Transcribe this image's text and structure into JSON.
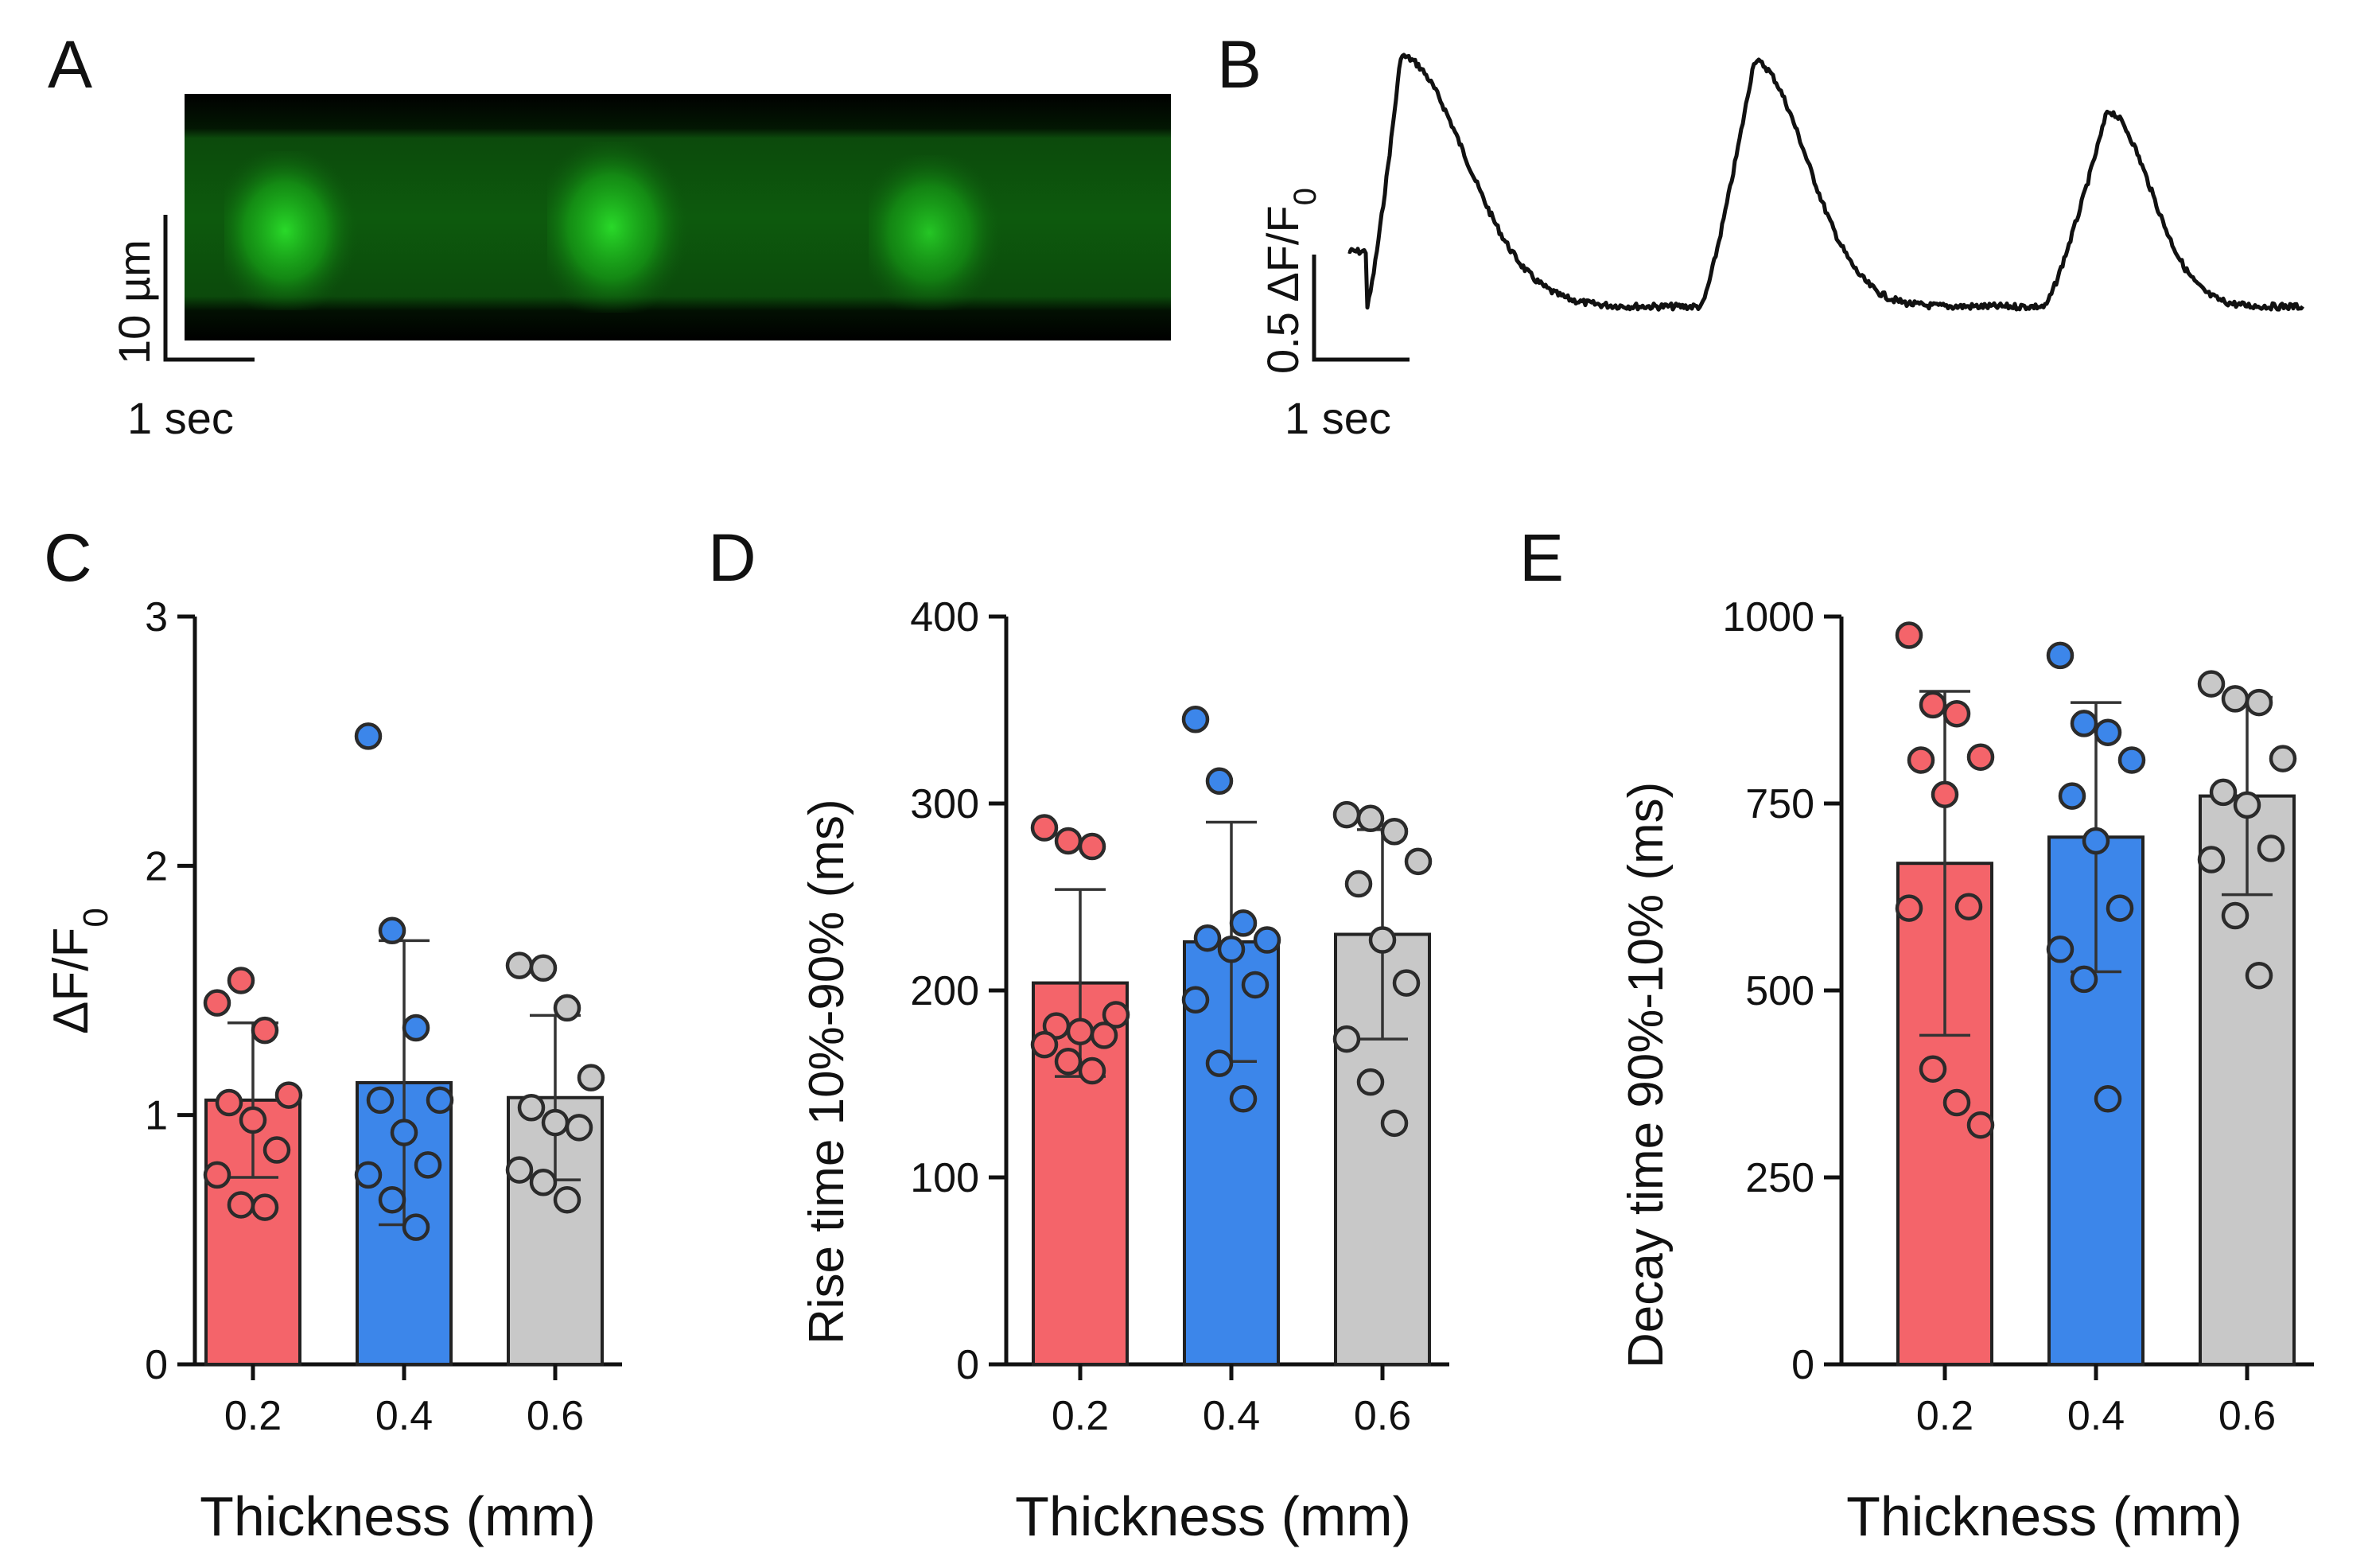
{
  "colors": {
    "red": "#f4646a",
    "blue": "#3c86ea",
    "gray": "#c8c8c8",
    "ink": "#111111",
    "kymo_bright": "#22dd22",
    "kymo_dim": "#0b5a0b"
  },
  "panel_a": {
    "label": "A",
    "scale_y": "10 µm",
    "scale_x": "1 sec"
  },
  "panel_b": {
    "label": "B",
    "scale_y_prefix": "0.5 ΔF/F",
    "scale_y_sub": "0",
    "scale_x": "1 sec"
  },
  "chart_data": [
    {
      "type": "bar",
      "panel": "C",
      "title": "",
      "categories": [
        "0.2",
        "0.4",
        "0.6"
      ],
      "values": [
        1.06,
        1.13,
        1.07
      ],
      "sd": [
        0.31,
        0.57,
        0.33
      ],
      "points": [
        [
          1.45,
          1.54,
          1.34,
          1.08,
          1.05,
          0.98,
          0.86,
          0.76,
          0.64,
          0.63
        ],
        [
          2.52,
          1.74,
          1.35,
          1.06,
          1.06,
          0.93,
          0.8,
          0.76,
          0.66,
          0.55
        ],
        [
          1.6,
          1.59,
          1.43,
          1.15,
          1.03,
          0.97,
          0.95,
          0.78,
          0.73,
          0.66
        ]
      ],
      "xlabel": "Thickness (mm)",
      "ylabel_prefix": "ΔF/F",
      "ylabel_sub": "0",
      "ylim": [
        0,
        3
      ],
      "yticks": [
        "0",
        "1",
        "2",
        "3"
      ]
    },
    {
      "type": "bar",
      "panel": "D",
      "title": "",
      "categories": [
        "0.2",
        "0.4",
        "0.6"
      ],
      "values": [
        204,
        226,
        230
      ],
      "sd": [
        50,
        64,
        56
      ],
      "points": [
        [
          287,
          280,
          277,
          187,
          181,
          178,
          176,
          171,
          162,
          157
        ],
        [
          345,
          312,
          236,
          227,
          228,
          222,
          203,
          195,
          161,
          142
        ],
        [
          294,
          292,
          285,
          269,
          257,
          227,
          204,
          174,
          151,
          129
        ]
      ],
      "xlabel": "Thickness (mm)",
      "ylabel": "Rise time 10%-90% (ms)",
      "ylim": [
        0,
        400
      ],
      "yticks": [
        "0",
        "100",
        "200",
        "300",
        "400"
      ]
    },
    {
      "type": "bar",
      "panel": "E",
      "title": "",
      "categories": [
        "0.2",
        "0.4",
        "0.6"
      ],
      "values": [
        670,
        705,
        760
      ],
      "sd": [
        230,
        180,
        132
      ],
      "points": [
        [
          975,
          882,
          870,
          812,
          808,
          762,
          612,
          610,
          395,
          350,
          320
        ],
        [
          948,
          857,
          845,
          808,
          760,
          700,
          610,
          555,
          515,
          355
        ],
        [
          910,
          890,
          885,
          810,
          765,
          748,
          690,
          675,
          600,
          520
        ]
      ],
      "xlabel": "Thickness (mm)",
      "ylabel": "Decay time 90%-10% (ms)",
      "ylim": [
        0,
        1000
      ],
      "yticks": [
        "0",
        "250",
        "500",
        "750",
        "1000"
      ]
    }
  ]
}
